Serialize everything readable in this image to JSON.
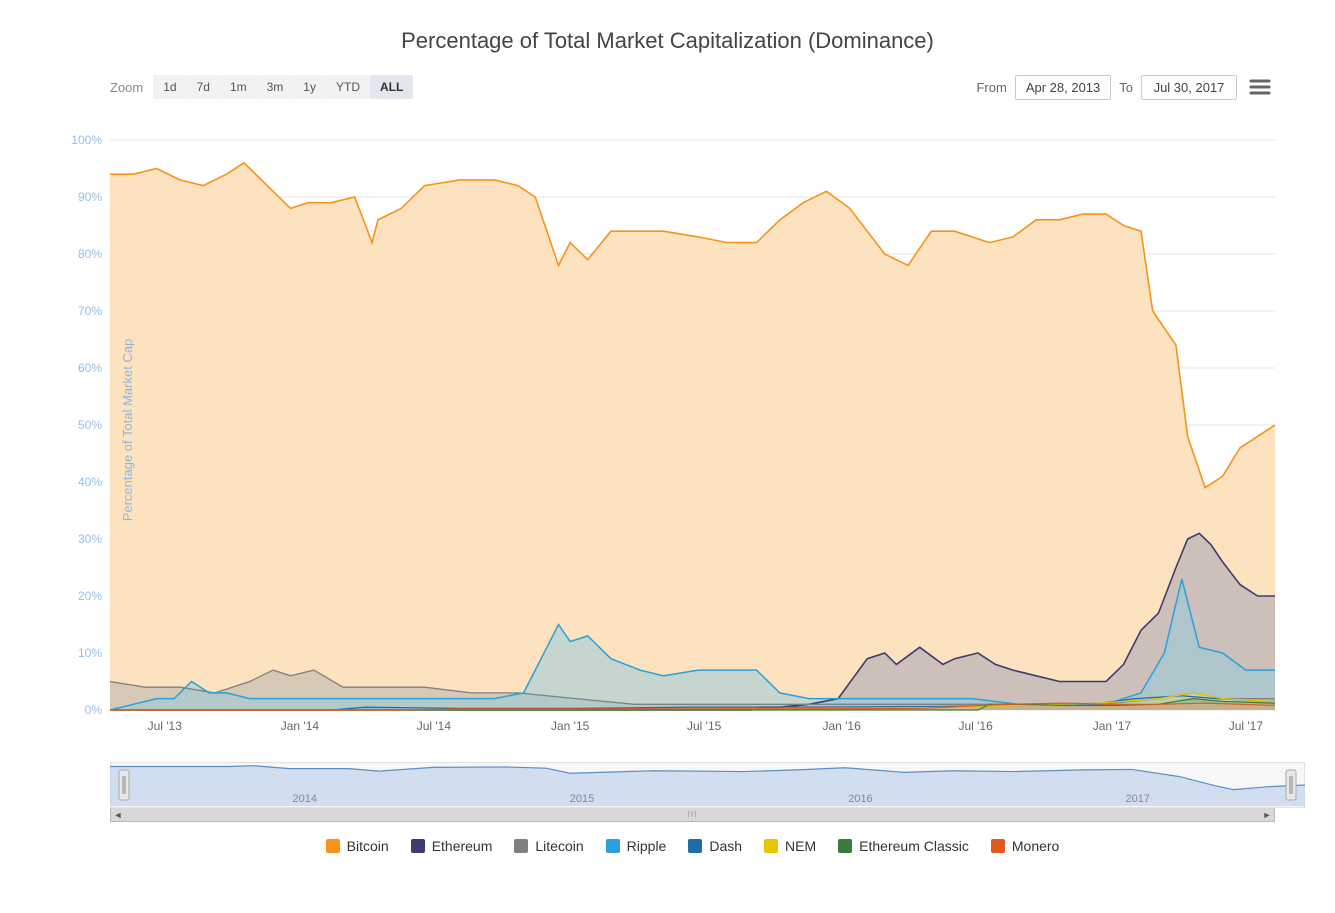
{
  "chart": {
    "title": "Percentage of Total Market Capitalization (Dominance)",
    "type": "area-line",
    "background_color": "#ffffff",
    "title_fontsize": 22,
    "title_color": "#444444"
  },
  "toolbar": {
    "zoom_label": "Zoom",
    "zoom_options": [
      {
        "label": "1d",
        "active": false
      },
      {
        "label": "7d",
        "active": false
      },
      {
        "label": "1m",
        "active": false
      },
      {
        "label": "3m",
        "active": false
      },
      {
        "label": "1y",
        "active": false
      },
      {
        "label": "YTD",
        "active": false
      },
      {
        "label": "ALL",
        "active": true
      }
    ],
    "from_label": "From",
    "from_value": "Apr 28, 2013",
    "to_label": "To",
    "to_value": "Jul 30, 2017"
  },
  "y_axis": {
    "title": "Percentage of Total Market Cap",
    "title_color": "#8fb6e0",
    "title_fontsize": 13,
    "ylim": [
      0,
      100
    ],
    "tick_step": 10,
    "ticks": [
      "0%",
      "10%",
      "20%",
      "30%",
      "40%",
      "50%",
      "60%",
      "70%",
      "80%",
      "90%",
      "100%"
    ],
    "tick_color": "#96bee6",
    "tick_fontsize": 12,
    "grid_color": "#e6e6e6"
  },
  "x_axis": {
    "ticks": [
      "Jul '13",
      "Jan '14",
      "Jul '14",
      "Jan '15",
      "Jul '15",
      "Jan '16",
      "Jul '16",
      "Jan '17",
      "Jul '17"
    ],
    "tick_positions": [
      0.047,
      0.163,
      0.278,
      0.395,
      0.51,
      0.628,
      0.743,
      0.86,
      0.975
    ],
    "tick_color": "#666666",
    "tick_fontsize": 12
  },
  "series": [
    {
      "name": "Bitcoin",
      "color": "#f7931a",
      "fill": "#fce2be",
      "fill_opacity": 1,
      "line_width": 1.6,
      "points": [
        [
          0,
          94
        ],
        [
          0.02,
          94
        ],
        [
          0.04,
          95
        ],
        [
          0.06,
          93
        ],
        [
          0.08,
          92
        ],
        [
          0.1,
          94
        ],
        [
          0.115,
          96
        ],
        [
          0.13,
          93
        ],
        [
          0.14,
          91
        ],
        [
          0.155,
          88
        ],
        [
          0.17,
          89
        ],
        [
          0.19,
          89
        ],
        [
          0.21,
          90
        ],
        [
          0.225,
          82
        ],
        [
          0.23,
          86
        ],
        [
          0.25,
          88
        ],
        [
          0.27,
          92
        ],
        [
          0.3,
          93
        ],
        [
          0.33,
          93
        ],
        [
          0.35,
          92
        ],
        [
          0.365,
          90
        ],
        [
          0.385,
          78
        ],
        [
          0.395,
          82
        ],
        [
          0.41,
          79
        ],
        [
          0.43,
          84
        ],
        [
          0.455,
          84
        ],
        [
          0.475,
          84
        ],
        [
          0.505,
          83
        ],
        [
          0.53,
          82
        ],
        [
          0.555,
          82
        ],
        [
          0.575,
          86
        ],
        [
          0.595,
          89
        ],
        [
          0.615,
          91
        ],
        [
          0.635,
          88
        ],
        [
          0.665,
          80
        ],
        [
          0.685,
          78
        ],
        [
          0.705,
          84
        ],
        [
          0.725,
          84
        ],
        [
          0.755,
          82
        ],
        [
          0.775,
          83
        ],
        [
          0.795,
          86
        ],
        [
          0.815,
          86
        ],
        [
          0.835,
          87
        ],
        [
          0.855,
          87
        ],
        [
          0.87,
          85
        ],
        [
          0.885,
          84
        ],
        [
          0.895,
          70
        ],
        [
          0.905,
          67
        ],
        [
          0.915,
          64
        ],
        [
          0.925,
          48
        ],
        [
          0.94,
          39
        ],
        [
          0.955,
          41
        ],
        [
          0.97,
          46
        ],
        [
          0.985,
          48
        ],
        [
          1,
          50
        ]
      ]
    },
    {
      "name": "Ethereum",
      "color": "#3c3c6e",
      "fill": "#9e9eb6",
      "fill_opacity": 0.5,
      "line_width": 1.6,
      "points": [
        [
          0,
          0
        ],
        [
          0.55,
          0
        ],
        [
          0.56,
          0.5
        ],
        [
          0.575,
          0.5
        ],
        [
          0.6,
          1
        ],
        [
          0.625,
          2
        ],
        [
          0.65,
          9
        ],
        [
          0.665,
          10
        ],
        [
          0.675,
          8
        ],
        [
          0.695,
          11
        ],
        [
          0.715,
          8
        ],
        [
          0.725,
          9
        ],
        [
          0.745,
          10
        ],
        [
          0.76,
          8
        ],
        [
          0.775,
          7
        ],
        [
          0.795,
          6
        ],
        [
          0.815,
          5
        ],
        [
          0.835,
          5
        ],
        [
          0.855,
          5
        ],
        [
          0.87,
          8
        ],
        [
          0.885,
          14
        ],
        [
          0.9,
          17
        ],
        [
          0.915,
          25
        ],
        [
          0.925,
          30
        ],
        [
          0.935,
          31
        ],
        [
          0.945,
          29
        ],
        [
          0.955,
          26
        ],
        [
          0.97,
          22
        ],
        [
          0.985,
          20
        ],
        [
          1,
          20
        ]
      ]
    },
    {
      "name": "Litecoin",
      "color": "#808080",
      "fill": "#b0b0b0",
      "fill_opacity": 0.5,
      "line_width": 1.3,
      "points": [
        [
          0,
          5
        ],
        [
          0.03,
          4
        ],
        [
          0.06,
          4
        ],
        [
          0.09,
          3
        ],
        [
          0.12,
          5
        ],
        [
          0.14,
          7
        ],
        [
          0.155,
          6
        ],
        [
          0.175,
          7
        ],
        [
          0.2,
          4
        ],
        [
          0.23,
          4
        ],
        [
          0.27,
          4
        ],
        [
          0.31,
          3
        ],
        [
          0.35,
          3
        ],
        [
          0.4,
          2
        ],
        [
          0.45,
          1
        ],
        [
          0.5,
          1
        ],
        [
          0.55,
          1
        ],
        [
          0.6,
          1
        ],
        [
          0.65,
          1
        ],
        [
          0.7,
          1
        ],
        [
          0.75,
          1
        ],
        [
          0.8,
          1
        ],
        [
          0.85,
          1
        ],
        [
          0.9,
          2
        ],
        [
          0.93,
          3
        ],
        [
          0.955,
          2
        ],
        [
          1,
          2
        ]
      ]
    },
    {
      "name": "Ripple",
      "color": "#2aa0db",
      "fill": "#8fc9de",
      "fill_opacity": 0.5,
      "line_width": 1.5,
      "points": [
        [
          0,
          0
        ],
        [
          0.04,
          2
        ],
        [
          0.055,
          2
        ],
        [
          0.07,
          5
        ],
        [
          0.085,
          3
        ],
        [
          0.1,
          3
        ],
        [
          0.12,
          2
        ],
        [
          0.15,
          2
        ],
        [
          0.2,
          2
        ],
        [
          0.25,
          2
        ],
        [
          0.3,
          2
        ],
        [
          0.33,
          2
        ],
        [
          0.355,
          3
        ],
        [
          0.375,
          11
        ],
        [
          0.385,
          15
        ],
        [
          0.395,
          12
        ],
        [
          0.41,
          13
        ],
        [
          0.43,
          9
        ],
        [
          0.455,
          7
        ],
        [
          0.475,
          6
        ],
        [
          0.505,
          7
        ],
        [
          0.53,
          7
        ],
        [
          0.555,
          7
        ],
        [
          0.575,
          3
        ],
        [
          0.6,
          2
        ],
        [
          0.63,
          2
        ],
        [
          0.66,
          2
        ],
        [
          0.7,
          2
        ],
        [
          0.74,
          2
        ],
        [
          0.78,
          1
        ],
        [
          0.82,
          1
        ],
        [
          0.855,
          1
        ],
        [
          0.885,
          3
        ],
        [
          0.905,
          10
        ],
        [
          0.92,
          23
        ],
        [
          0.935,
          11
        ],
        [
          0.955,
          10
        ],
        [
          0.975,
          7
        ],
        [
          1,
          7
        ]
      ]
    },
    {
      "name": "Dash",
      "color": "#1d6ea8",
      "fill": "#78a8c9",
      "fill_opacity": 0.5,
      "line_width": 1.2,
      "points": [
        [
          0,
          0
        ],
        [
          0.19,
          0
        ],
        [
          0.22,
          0.5
        ],
        [
          0.3,
          0.3
        ],
        [
          0.4,
          0.3
        ],
        [
          0.5,
          0.5
        ],
        [
          0.6,
          0.5
        ],
        [
          0.7,
          0.6
        ],
        [
          0.78,
          0.8
        ],
        [
          0.85,
          1.2
        ],
        [
          0.88,
          2
        ],
        [
          0.92,
          2.5
        ],
        [
          0.95,
          2
        ],
        [
          1,
          1.5
        ]
      ]
    },
    {
      "name": "NEM",
      "color": "#e9c500",
      "fill": "#efe08a",
      "fill_opacity": 0.5,
      "line_width": 1.2,
      "points": [
        [
          0,
          0
        ],
        [
          0.45,
          0
        ],
        [
          0.5,
          0.2
        ],
        [
          0.6,
          0.3
        ],
        [
          0.7,
          0.4
        ],
        [
          0.78,
          0.8
        ],
        [
          0.85,
          1.2
        ],
        [
          0.9,
          2
        ],
        [
          0.93,
          3
        ],
        [
          0.955,
          2
        ],
        [
          1,
          1.5
        ]
      ]
    },
    {
      "name": "Ethereum Classic",
      "color": "#3b7a3b",
      "fill": "#7fae7f",
      "fill_opacity": 0.5,
      "line_width": 1.2,
      "points": [
        [
          0,
          0
        ],
        [
          0.745,
          0
        ],
        [
          0.755,
          1
        ],
        [
          0.78,
          1
        ],
        [
          0.82,
          0.8
        ],
        [
          0.86,
          0.8
        ],
        [
          0.9,
          1
        ],
        [
          0.93,
          2
        ],
        [
          0.955,
          1.5
        ],
        [
          1,
          1.2
        ]
      ]
    },
    {
      "name": "Monero",
      "color": "#e05a1e",
      "fill": "#e9a47f",
      "fill_opacity": 0.5,
      "line_width": 1.2,
      "points": [
        [
          0,
          0
        ],
        [
          0.25,
          0
        ],
        [
          0.3,
          0.2
        ],
        [
          0.4,
          0.2
        ],
        [
          0.5,
          0.2
        ],
        [
          0.6,
          0.2
        ],
        [
          0.7,
          0.3
        ],
        [
          0.77,
          1
        ],
        [
          0.82,
          1.2
        ],
        [
          0.86,
          1
        ],
        [
          0.9,
          1
        ],
        [
          0.94,
          1.2
        ],
        [
          1,
          0.8
        ]
      ]
    }
  ],
  "navigator": {
    "height": 46,
    "background": "#f7f7f7",
    "fill": "#c6d7ec",
    "line_color": "#5b8fc7",
    "year_labels": [
      "2014",
      "2015",
      "2016",
      "2017"
    ],
    "year_positions": [
      0.163,
      0.395,
      0.628,
      0.86
    ],
    "handle_color": "#b8b8b8",
    "scroll_bg": "#d8d8d8",
    "points": [
      [
        0,
        94
      ],
      [
        0.05,
        94
      ],
      [
        0.1,
        94
      ],
      [
        0.12,
        96
      ],
      [
        0.15,
        89
      ],
      [
        0.2,
        89
      ],
      [
        0.225,
        83
      ],
      [
        0.27,
        92
      ],
      [
        0.33,
        93
      ],
      [
        0.365,
        90
      ],
      [
        0.385,
        78
      ],
      [
        0.41,
        80
      ],
      [
        0.455,
        84
      ],
      [
        0.53,
        82
      ],
      [
        0.575,
        86
      ],
      [
        0.615,
        91
      ],
      [
        0.665,
        80
      ],
      [
        0.705,
        84
      ],
      [
        0.755,
        82
      ],
      [
        0.815,
        86
      ],
      [
        0.855,
        87
      ],
      [
        0.895,
        70
      ],
      [
        0.925,
        48
      ],
      [
        0.94,
        39
      ],
      [
        0.97,
        46
      ],
      [
        1,
        50
      ]
    ]
  },
  "legend": {
    "fontsize": 14,
    "items": [
      {
        "label": "Bitcoin",
        "color": "#f7931a"
      },
      {
        "label": "Ethereum",
        "color": "#3c3c6e"
      },
      {
        "label": "Litecoin",
        "color": "#808080"
      },
      {
        "label": "Ripple",
        "color": "#2aa0db"
      },
      {
        "label": "Dash",
        "color": "#1d6ea8"
      },
      {
        "label": "NEM",
        "color": "#e9c500"
      },
      {
        "label": "Ethereum Classic",
        "color": "#3b7a3b"
      },
      {
        "label": "Monero",
        "color": "#e05a1e"
      }
    ]
  }
}
